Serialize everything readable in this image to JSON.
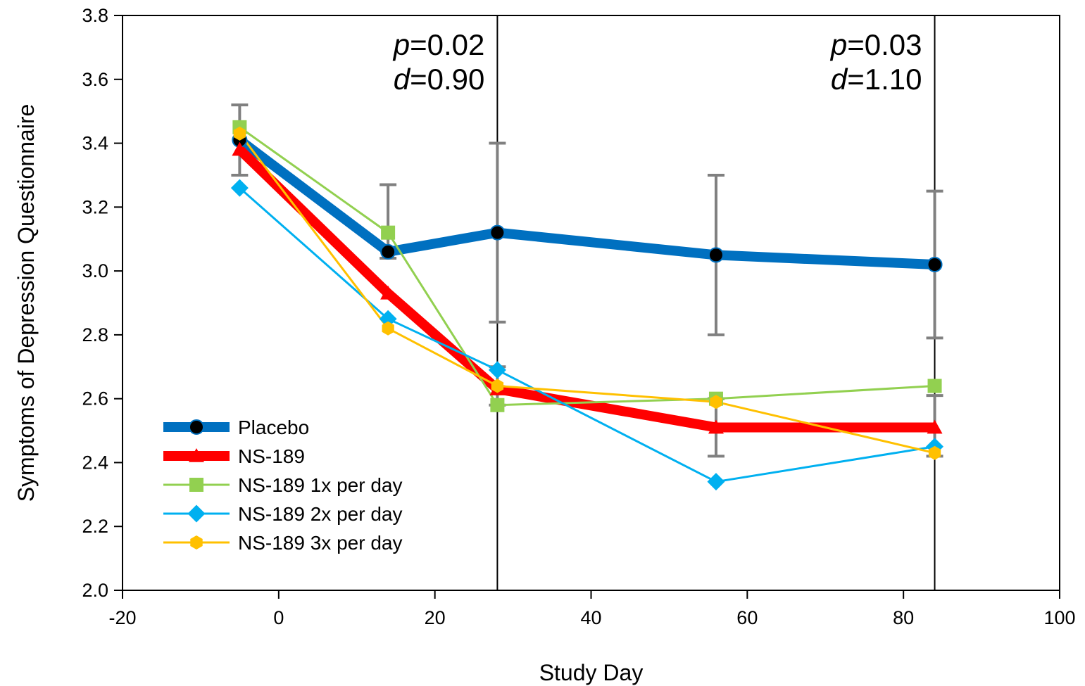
{
  "chart_data": {
    "type": "line",
    "title": "",
    "xlabel": "Study Day",
    "ylabel": "Symptoms of Depression Questionnaire",
    "xlim": [
      -20,
      100
    ],
    "ylim": [
      2.0,
      3.8
    ],
    "x_ticks": [
      -20,
      0,
      20,
      40,
      60,
      80,
      100
    ],
    "x_tick_labels": [
      "-20",
      "0",
      "20",
      "40",
      "60",
      "80",
      "100"
    ],
    "y_ticks": [
      2.0,
      2.2,
      2.4,
      2.6,
      2.8,
      3.0,
      3.2,
      3.4,
      3.6,
      3.8
    ],
    "y_tick_labels": [
      "2.0",
      "2.2",
      "2.4",
      "2.6",
      "2.8",
      "3.0",
      "3.2",
      "3.4",
      "3.6",
      "3.8"
    ],
    "grid": false,
    "legend_position": "bottom-left",
    "reference_lines": [
      {
        "x": 28,
        "annotation": {
          "p_symbol": "p",
          "p_value": "=0.02",
          "d_symbol": "d",
          "d_value": "=0.90"
        }
      },
      {
        "x": 84,
        "annotation": {
          "p_symbol": "p",
          "p_value": "=0.03",
          "d_symbol": "d",
          "d_value": "=1.10"
        }
      }
    ],
    "error_bars": {
      "color": "#808080",
      "items": [
        {
          "x": -5,
          "low": 3.3,
          "high": 3.52
        },
        {
          "x": 14,
          "low": 3.04,
          "high": 3.27
        },
        {
          "x": 28,
          "low": 2.84,
          "high": 3.4
        },
        {
          "x": 56,
          "low": 2.8,
          "high": 3.3
        },
        {
          "x": 84,
          "low": 2.79,
          "high": 3.25
        },
        {
          "x": 28,
          "low": 2.58,
          "high": 2.7
        },
        {
          "x": 56,
          "low": 2.42,
          "high": 2.6
        },
        {
          "x": 84,
          "low": 2.42,
          "high": 2.61
        }
      ]
    },
    "series": [
      {
        "name": "Placebo",
        "color": "#0070C0",
        "marker": "circle",
        "marker_color": "#000000",
        "weight": "heavy",
        "x": [
          -5,
          14,
          28,
          56,
          84
        ],
        "y": [
          3.41,
          3.06,
          3.12,
          3.05,
          3.02
        ]
      },
      {
        "name": "NS-189",
        "color": "#FF0000",
        "marker": "triangle",
        "marker_color": "#FF0000",
        "weight": "heavy",
        "x": [
          -5,
          14,
          28,
          56,
          84
        ],
        "y": [
          3.38,
          2.93,
          2.63,
          2.51,
          2.51
        ]
      },
      {
        "name": "NS-189 1x per day",
        "color": "#92D050",
        "marker": "square",
        "marker_color": "#92D050",
        "weight": "thin",
        "x": [
          -5,
          14,
          28,
          56,
          84
        ],
        "y": [
          3.45,
          3.12,
          2.58,
          2.6,
          2.64
        ]
      },
      {
        "name": "NS-189 2x per day",
        "color": "#00B0F0",
        "marker": "diamond",
        "marker_color": "#00B0F0",
        "weight": "thin",
        "x": [
          -5,
          14,
          28,
          56,
          84
        ],
        "y": [
          3.26,
          2.85,
          2.69,
          2.34,
          2.45
        ]
      },
      {
        "name": "NS-189 3x per day",
        "color": "#FFC000",
        "marker": "hexagon",
        "marker_color": "#FFC000",
        "weight": "thin",
        "x": [
          -5,
          14,
          28,
          56,
          84
        ],
        "y": [
          3.43,
          2.82,
          2.64,
          2.59,
          2.43
        ]
      }
    ]
  }
}
